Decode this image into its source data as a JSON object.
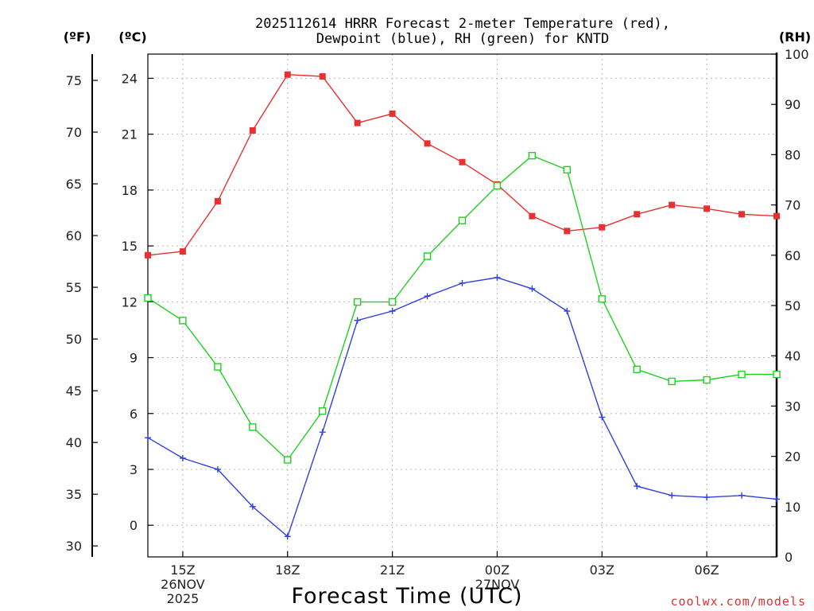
{
  "chart_data": {
    "type": "line",
    "title": "2025112614 HRRR Forecast 2-meter Temperature (red),",
    "subtitle": "Dewpoint (blue), RH (green) for KNTD",
    "xlabel": "Forecast Time (UTC)",
    "credit": "coolwx.com/models",
    "units": {
      "fahrenheit": "(ºF)",
      "celsius": "(ºC)",
      "rh": "(RH)"
    },
    "x_hours": [
      14,
      15,
      16,
      17,
      18,
      19,
      20,
      21,
      22,
      23,
      24,
      25,
      26,
      27,
      28,
      29,
      30,
      31,
      32
    ],
    "x_ticks": [
      {
        "hour": 15,
        "lines": [
          "15Z",
          "26NOV",
          "2025"
        ]
      },
      {
        "hour": 18,
        "lines": [
          "18Z"
        ]
      },
      {
        "hour": 21,
        "lines": [
          "21Z"
        ]
      },
      {
        "hour": 24,
        "lines": [
          "00Z",
          "27NOV"
        ]
      },
      {
        "hour": 27,
        "lines": [
          "03Z"
        ]
      },
      {
        "hour": 30,
        "lines": [
          "06Z"
        ]
      }
    ],
    "xlim": [
      14,
      32
    ],
    "celsius_ticks": [
      "0",
      "3",
      "6",
      "9",
      "12",
      "15",
      "18",
      "21",
      "24"
    ],
    "fahrenheit_ticks": [
      "30",
      "35",
      "40",
      "45",
      "50",
      "55",
      "60",
      "65",
      "70",
      "75"
    ],
    "rh_ticks": [
      "0",
      "10",
      "20",
      "30",
      "40",
      "50",
      "60",
      "70",
      "80",
      "90",
      "100"
    ],
    "ylim_celsius": [
      -1.7,
      25.3
    ],
    "ylim_rh": [
      0,
      100
    ],
    "series": [
      {
        "name": "Temperature",
        "axis": "celsius",
        "color": "#e83030",
        "marker": "filled-square",
        "values": [
          14.5,
          14.7,
          17.4,
          21.2,
          24.2,
          24.1,
          21.6,
          22.1,
          20.5,
          19.5,
          18.3,
          16.6,
          15.8,
          16.0,
          16.7,
          17.2,
          17.0,
          16.7,
          16.6
        ]
      },
      {
        "name": "Dewpoint",
        "axis": "celsius",
        "color": "#3040e0",
        "marker": "plus",
        "values": [
          4.7,
          3.6,
          3.0,
          1.0,
          -0.6,
          5.0,
          11.0,
          11.5,
          12.3,
          13.0,
          13.3,
          12.7,
          11.5,
          5.8,
          2.1,
          1.6,
          1.5,
          1.6,
          1.4
        ]
      },
      {
        "name": "RH",
        "axis": "rh",
        "color": "#20d020",
        "marker": "open-square",
        "values": [
          51.5,
          47.0,
          37.8,
          25.8,
          19.3,
          29.0,
          50.7,
          50.7,
          59.8,
          66.9,
          73.8,
          79.8,
          77.0,
          51.3,
          37.3,
          34.9,
          35.2,
          36.3,
          36.3
        ]
      }
    ]
  }
}
